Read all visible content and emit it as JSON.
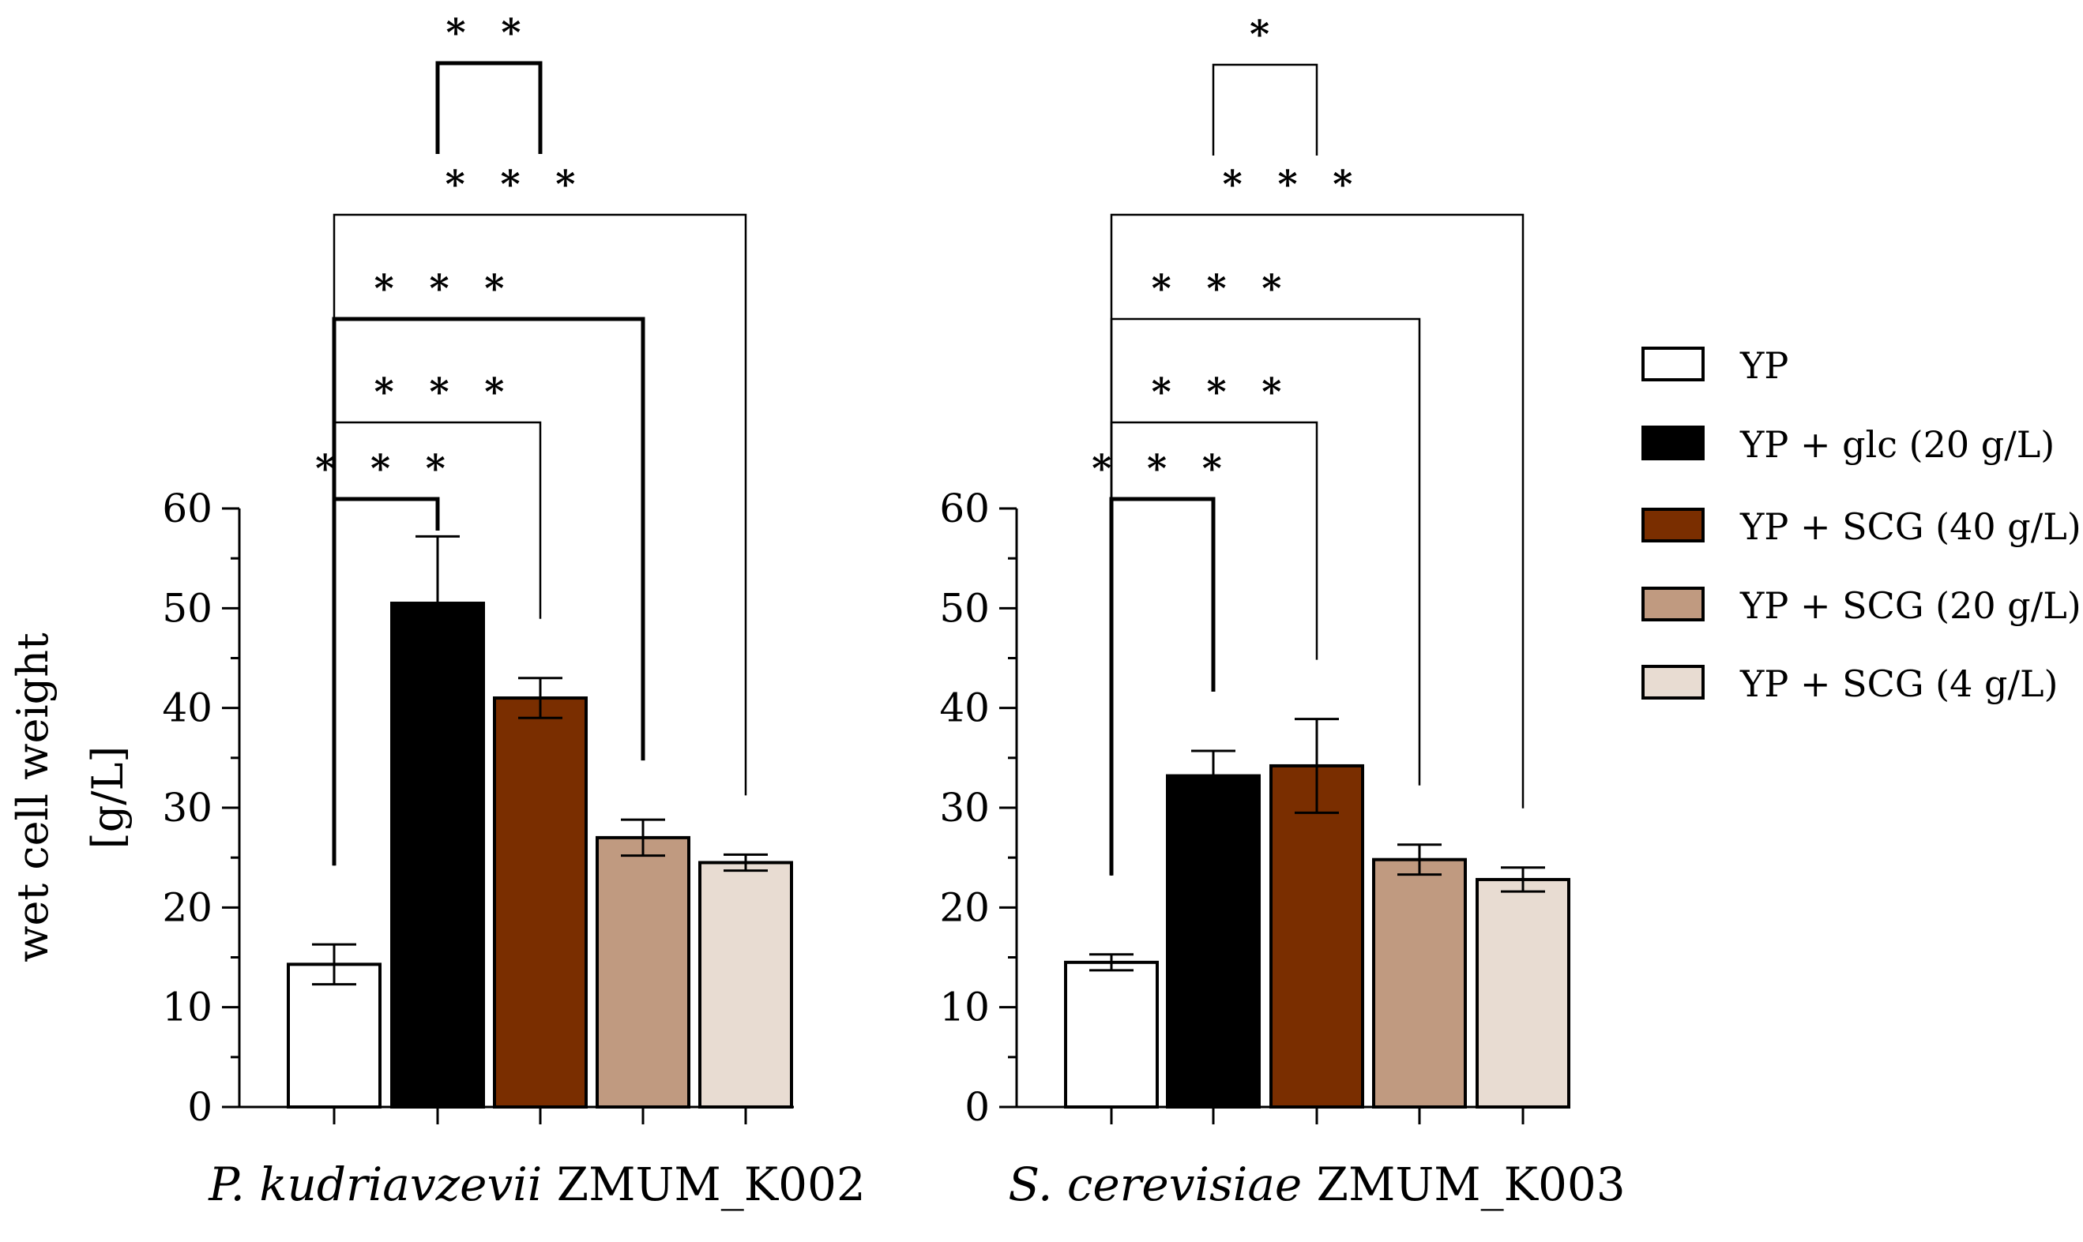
{
  "chart_data": {
    "type": "bar",
    "ylabel_line1": "wet cell weight",
    "ylabel_line2": "[g/L]",
    "ylim": [
      0,
      60
    ],
    "yticks": [
      "0",
      "10",
      "20",
      "30",
      "40",
      "50",
      "60"
    ],
    "series_names": [
      "YP",
      "YP + glc (20 g/L)",
      "YP + SCG (40 g/L)",
      "YP + SCG (20 g/L)",
      "YP + SCG (4 g/L)"
    ],
    "colors": [
      "#ffffff",
      "#000000",
      "#7a2e00",
      "#c09a80",
      "#e8dcd2"
    ],
    "panels": [
      {
        "name_italic": "P. kudriavzevii",
        "name_rest": " ZMUM_K002",
        "values": [
          14.3,
          50.5,
          41.0,
          27.0,
          24.5
        ],
        "errors": [
          2.0,
          6.7,
          2.0,
          1.8,
          0.8
        ],
        "comparisons": [
          {
            "from": 0,
            "to": 1,
            "label": "* * *",
            "bold": true
          },
          {
            "from": 0,
            "to": 2,
            "label": "* * *",
            "bold": false
          },
          {
            "from": 0,
            "to": 3,
            "label": "* * *",
            "bold": true
          },
          {
            "from": 0,
            "to": 4,
            "label": "* * *",
            "bold": false
          },
          {
            "from": 1,
            "to": 2,
            "label": "* *",
            "bold": true
          }
        ]
      },
      {
        "name_italic": "S. cerevisiae",
        "name_rest": " ZMUM_K003",
        "values": [
          14.5,
          33.2,
          34.2,
          24.8,
          22.8
        ],
        "errors": [
          0.8,
          2.5,
          4.7,
          1.5,
          1.2
        ],
        "comparisons": [
          {
            "from": 0,
            "to": 1,
            "label": "* * *",
            "bold": true
          },
          {
            "from": 0,
            "to": 2,
            "label": "* * *",
            "bold": false
          },
          {
            "from": 0,
            "to": 3,
            "label": "* * *",
            "bold": false
          },
          {
            "from": 0,
            "to": 4,
            "label": "* * *",
            "bold": false
          },
          {
            "from": 1,
            "to": 2,
            "label": "*",
            "bold": false
          }
        ]
      }
    ]
  }
}
